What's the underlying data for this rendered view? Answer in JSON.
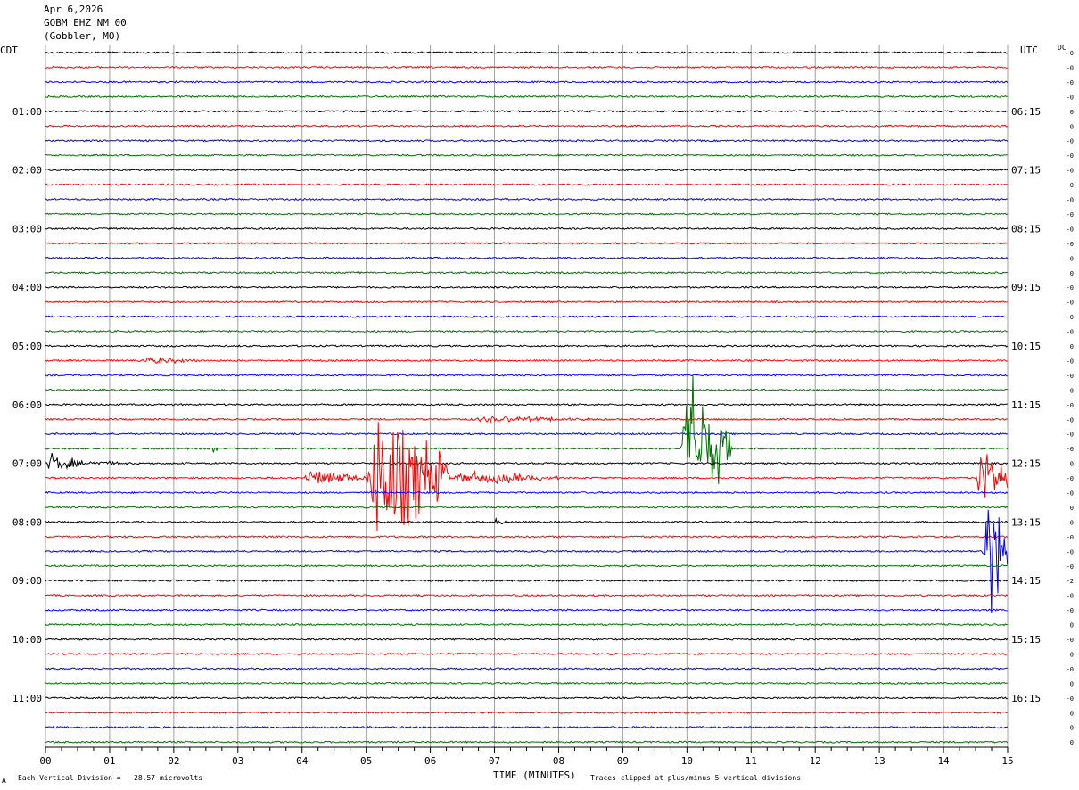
{
  "header": {
    "date": "Apr 6,2026",
    "station": "GOBM EHZ NM 00",
    "location": "(Gobbler, MO)"
  },
  "left_tz": "CDT",
  "right_tz": "UTC",
  "dc_label": "DC",
  "footer": {
    "scale_note": "Each Vertical Division =   28.57 microvolts",
    "clip_note": "Traces clipped at plus/minus 5 vertical divisions",
    "corner_mark": "A"
  },
  "colors": {
    "cycle": [
      "#000000",
      "#ff0000",
      "#0000ff",
      "#007000"
    ],
    "grid": "#a0a0a0"
  },
  "chart_data": {
    "type": "line",
    "xlabel": "TIME (MINUTES)",
    "x_ticks": [
      "00",
      "01",
      "02",
      "03",
      "04",
      "05",
      "06",
      "07",
      "08",
      "09",
      "10",
      "11",
      "12",
      "13",
      "14",
      "15"
    ],
    "xlim": [
      0,
      15
    ],
    "trace_count": 48,
    "left_hour_labels": [
      "01:00",
      "02:00",
      "03:00",
      "04:00",
      "05:00",
      "06:00",
      "07:00",
      "08:00",
      "09:00",
      "10:00",
      "11:00"
    ],
    "right_hour_labels": [
      "06:15",
      "07:15",
      "08:15",
      "09:15",
      "10:15",
      "11:15",
      "12:15",
      "13:15",
      "14:15",
      "15:15",
      "16:15"
    ],
    "dc_offsets": [
      "-0",
      "-0",
      "-0",
      "-0",
      "0",
      "0",
      "-0",
      "-0",
      "-0",
      "0",
      "-0",
      "-0",
      "-0",
      "-0",
      "-0",
      "0",
      "-0",
      "-0",
      "-0",
      "-0",
      "0",
      "-0",
      "-0",
      "0",
      "-0",
      "-0",
      "-0",
      "-0",
      "0",
      "-0",
      "-0",
      "0",
      "-0",
      "-0",
      "-0",
      "-0",
      "-2",
      "-0",
      "-0",
      "0",
      "-0",
      "0",
      "-0",
      "0",
      "-0",
      "0",
      "0",
      "0"
    ],
    "events": [
      {
        "trace": 28,
        "start_min": 0.0,
        "end_min": 0.6,
        "amp": 0.7
      },
      {
        "trace": 28,
        "start_min": 0.6,
        "end_min": 1.5,
        "amp": 0.2
      },
      {
        "trace": 27,
        "start_min": 2.6,
        "end_min": 2.7,
        "amp": 0.4
      },
      {
        "trace": 29,
        "start_min": 4.0,
        "end_min": 5.0,
        "amp": 0.6
      },
      {
        "trace": 29,
        "start_min": 5.0,
        "end_min": 6.3,
        "amp": 5.0
      },
      {
        "trace": 29,
        "start_min": 6.3,
        "end_min": 8.0,
        "amp": 0.5
      },
      {
        "trace": 27,
        "start_min": 9.9,
        "end_min": 10.7,
        "amp": 5.0
      },
      {
        "trace": 29,
        "start_min": 14.5,
        "end_min": 15.0,
        "amp": 2.5
      },
      {
        "trace": 34,
        "start_min": 14.6,
        "end_min": 15.0,
        "amp": 5.0
      },
      {
        "trace": 32,
        "start_min": 7.0,
        "end_min": 7.2,
        "amp": 0.3
      },
      {
        "trace": 25,
        "start_min": 6.5,
        "end_min": 9.0,
        "amp": 0.2
      },
      {
        "trace": 21,
        "start_min": 1.4,
        "end_min": 2.5,
        "amp": 0.25
      }
    ]
  }
}
